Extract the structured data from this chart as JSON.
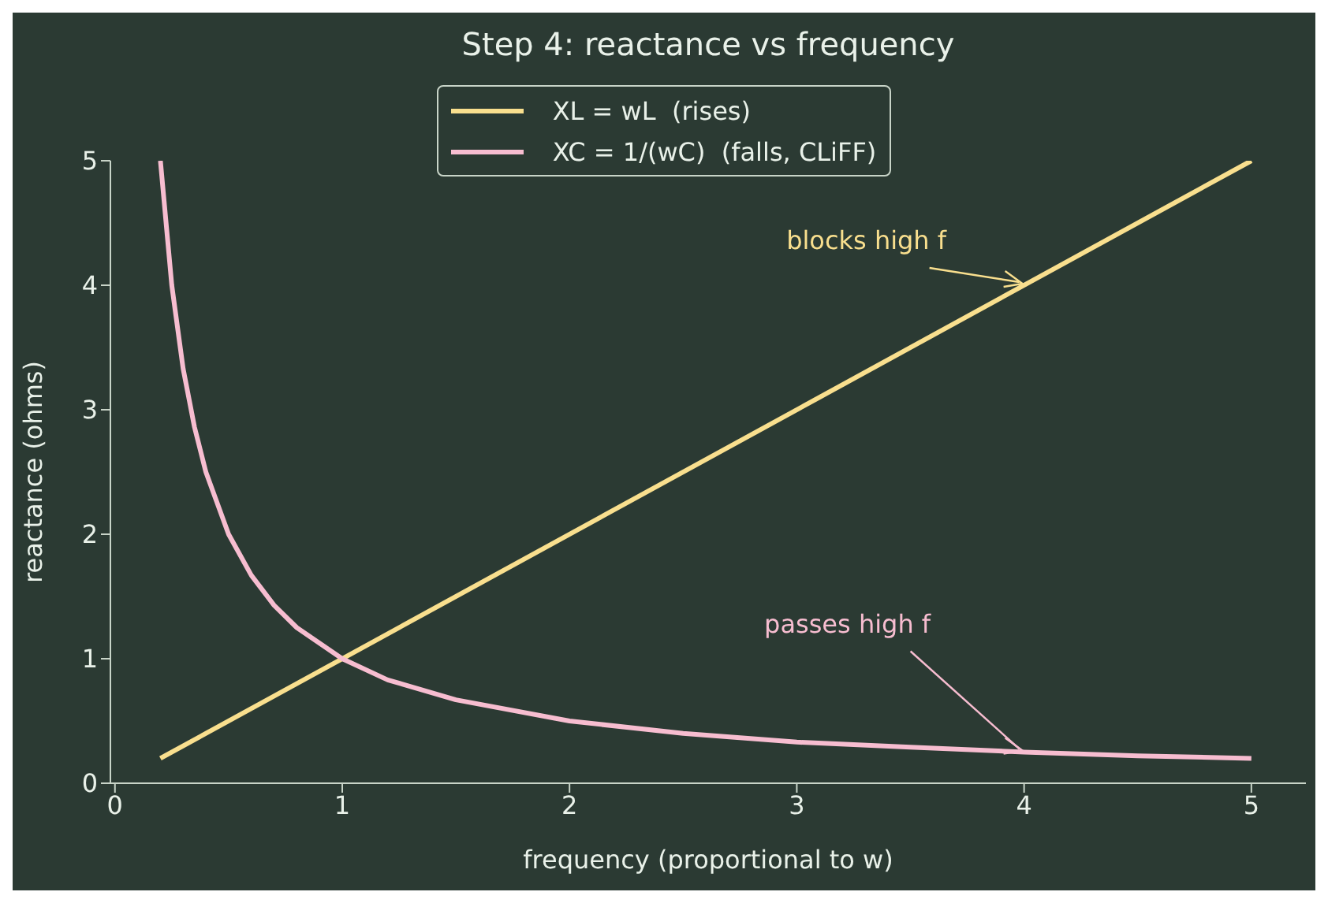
{
  "chart_data": {
    "type": "line",
    "title": "Step 4: reactance vs frequency",
    "xlabel": "frequency (proportional to w)",
    "ylabel": "reactance (ohms)",
    "series": [
      {
        "name": "XL = wL  (rises)",
        "color": "#f9df8e",
        "x": [
          0.2,
          5
        ],
        "values": [
          0.2,
          5
        ]
      },
      {
        "name": "XC = 1/(wC)  (falls, CLiFF)",
        "color": "#f7bdd0",
        "x": [
          0.2,
          0.25,
          0.3,
          0.35,
          0.4,
          0.5,
          0.6,
          0.7,
          0.8,
          1,
          1.2,
          1.5,
          2,
          2.5,
          3,
          3.5,
          4,
          4.5,
          5
        ],
        "values": [
          5,
          4,
          3.33,
          2.86,
          2.5,
          2,
          1.67,
          1.43,
          1.25,
          1,
          0.83,
          0.67,
          0.5,
          0.4,
          0.33,
          0.29,
          0.25,
          0.22,
          0.2
        ]
      }
    ],
    "annotations": [
      {
        "text": "blocks high f",
        "x": 4,
        "y": 4
      },
      {
        "text": "passes high f",
        "x": 4,
        "y": 0.25
      }
    ],
    "xlim": [
      -0.02,
      5.24
    ],
    "xticks": [
      0,
      1,
      2,
      3,
      4,
      5
    ],
    "ylim": [
      0,
      5
    ],
    "yticks": [
      0,
      1,
      2,
      3,
      4,
      5
    ],
    "legend": "top",
    "marker": "none",
    "line_style": "solid",
    "grid": false
  }
}
